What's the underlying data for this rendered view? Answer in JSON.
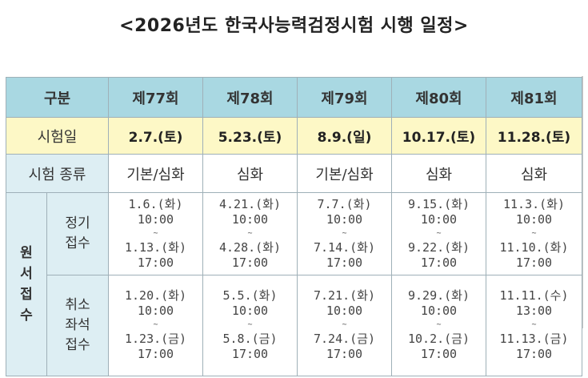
{
  "title": "<2026년도 한국사능력검정시험 시행 일정>",
  "header": {
    "category": "구분",
    "rounds": [
      "제77회",
      "제78회",
      "제79회",
      "제80회",
      "제81회"
    ]
  },
  "exam_date": {
    "label": "시험일",
    "values": [
      "2.7.(토)",
      "5.23.(토)",
      "8.9.(일)",
      "10.17.(토)",
      "11.28.(토)"
    ]
  },
  "exam_type": {
    "label": "시험 종류",
    "values": [
      "기본/심화",
      "심화",
      "기본/심화",
      "심화",
      "심화"
    ]
  },
  "application": {
    "label_chars": [
      "원",
      "서",
      "접",
      "수"
    ],
    "regular": {
      "label_lines": [
        "정기",
        "접수"
      ],
      "periods": [
        {
          "start_date": "1.6.(화)",
          "start_time": "10:00",
          "sep": "~",
          "end_date": "1.13.(화)",
          "end_time": "17:00"
        },
        {
          "start_date": "4.21.(화)",
          "start_time": "10:00",
          "sep": "~",
          "end_date": "4.28.(화)",
          "end_time": "17:00"
        },
        {
          "start_date": "7.7.(화)",
          "start_time": "10:00",
          "sep": "~",
          "end_date": "7.14.(화)",
          "end_time": "17:00"
        },
        {
          "start_date": "9.15.(화)",
          "start_time": "10:00",
          "sep": "~",
          "end_date": "9.22.(화)",
          "end_time": "17:00"
        },
        {
          "start_date": "11.3.(화)",
          "start_time": "10:00",
          "sep": "~",
          "end_date": "11.10.(화)",
          "end_time": "17:00"
        }
      ]
    },
    "cancel": {
      "label_lines": [
        "취소",
        "좌석",
        "접수"
      ],
      "periods": [
        {
          "start_date": "1.20.(화)",
          "start_time": "10:00",
          "sep": "~",
          "end_date": "1.23.(금)",
          "end_time": "17:00"
        },
        {
          "start_date": "5.5.(화)",
          "start_time": "10:00",
          "sep": "~",
          "end_date": "5.8.(금)",
          "end_time": "17:00"
        },
        {
          "start_date": "7.21.(화)",
          "start_time": "10:00",
          "sep": "~",
          "end_date": "7.24.(금)",
          "end_time": "17:00"
        },
        {
          "start_date": "9.29.(화)",
          "start_time": "10:00",
          "sep": "~",
          "end_date": "10.2.(금)",
          "end_time": "17:00"
        },
        {
          "start_date": "11.11.(수)",
          "start_time": "13:00",
          "sep": "~",
          "end_date": "11.13.(금)",
          "end_time": "17:00"
        }
      ]
    }
  },
  "colors": {
    "header_bg": "#a9d8e2",
    "date_row_bg": "#fdf8c6",
    "label_bg": "#ddeef3",
    "border": "#9fb0b8"
  }
}
